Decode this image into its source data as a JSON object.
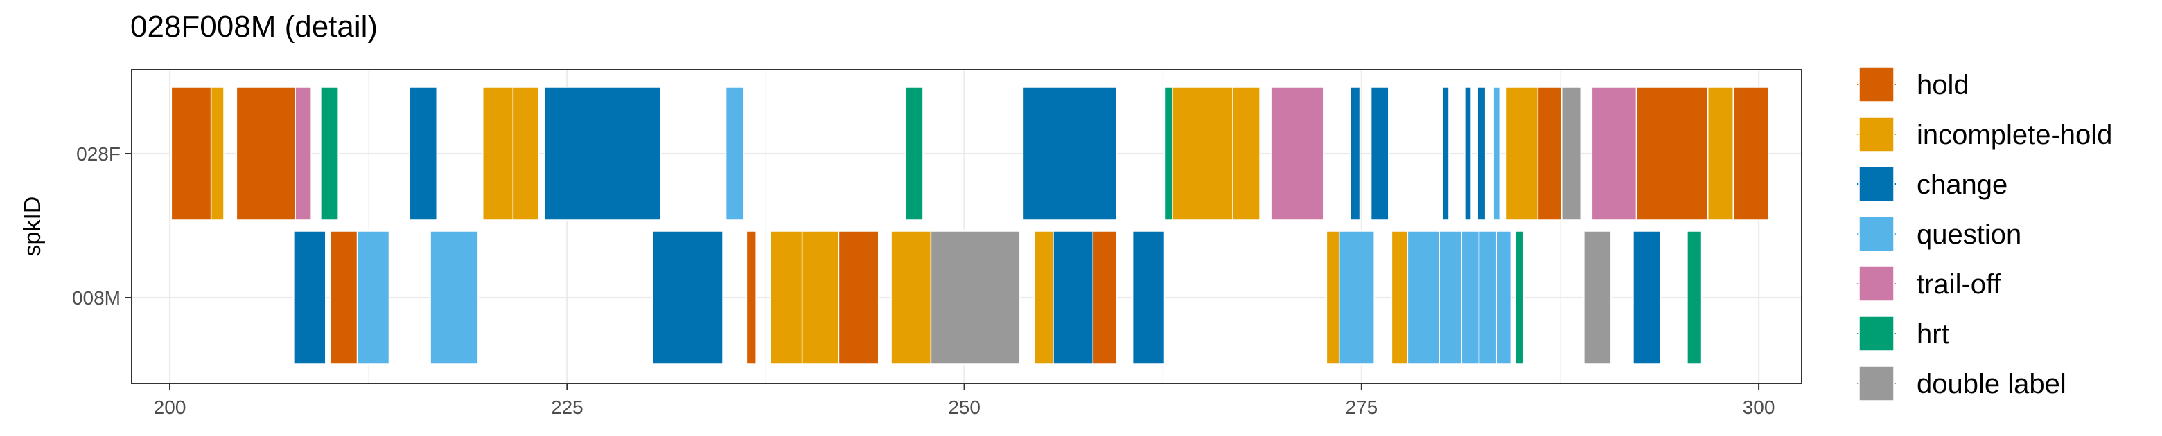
{
  "chart_data": {
    "type": "bar",
    "title": "028F008M (detail)",
    "ylabel": "spkID",
    "xlabel": "",
    "xlim": [
      197.6,
      302.7
    ],
    "x_ticks": [
      "200",
      "225",
      "250",
      "275",
      "300"
    ],
    "x_tick_values": [
      200,
      225,
      250,
      275,
      300
    ],
    "categories": [
      "028F",
      "008M"
    ],
    "grid": true,
    "legend_position": "right",
    "legend": [
      {
        "key": "hold",
        "label": "hold",
        "color": "#D55E00"
      },
      {
        "key": "incomplete-hold",
        "label": "incomplete-hold",
        "color": "#E69F00"
      },
      {
        "key": "change",
        "label": "change",
        "color": "#0072B2"
      },
      {
        "key": "question",
        "label": "question",
        "color": "#56B4E9"
      },
      {
        "key": "trail-off",
        "label": "trail-off",
        "color": "#CC79A7"
      },
      {
        "key": "hrt",
        "label": "hrt",
        "color": "#009E73"
      },
      {
        "key": "double label",
        "label": "double label",
        "color": "#999999"
      }
    ],
    "series": [
      {
        "speaker": "028F",
        "segments": [
          {
            "start": 200.1,
            "end": 202.6,
            "label": "hold"
          },
          {
            "start": 202.6,
            "end": 203.4,
            "label": "incomplete-hold"
          },
          {
            "start": 204.2,
            "end": 207.9,
            "label": "hold"
          },
          {
            "start": 207.9,
            "end": 208.9,
            "label": "trail-off"
          },
          {
            "start": 209.5,
            "end": 210.6,
            "label": "hrt"
          },
          {
            "start": 215.1,
            "end": 216.8,
            "label": "change"
          },
          {
            "start": 219.7,
            "end": 221.6,
            "label": "incomplete-hold"
          },
          {
            "start": 221.6,
            "end": 223.2,
            "label": "incomplete-hold"
          },
          {
            "start": 223.6,
            "end": 230.9,
            "label": "change"
          },
          {
            "start": 235.0,
            "end": 236.1,
            "label": "question"
          },
          {
            "start": 246.3,
            "end": 247.4,
            "label": "hrt"
          },
          {
            "start": 253.7,
            "end": 259.6,
            "label": "change"
          },
          {
            "start": 262.6,
            "end": 263.1,
            "label": "hrt"
          },
          {
            "start": 263.1,
            "end": 266.9,
            "label": "incomplete-hold"
          },
          {
            "start": 266.9,
            "end": 268.6,
            "label": "incomplete-hold"
          },
          {
            "start": 269.3,
            "end": 272.6,
            "label": "trail-off"
          },
          {
            "start": 274.3,
            "end": 274.9,
            "label": "change"
          },
          {
            "start": 275.6,
            "end": 276.7,
            "label": "change"
          },
          {
            "start": 280.1,
            "end": 280.5,
            "label": "change"
          },
          {
            "start": 281.5,
            "end": 281.9,
            "label": "change"
          },
          {
            "start": 282.3,
            "end": 282.8,
            "label": "change"
          },
          {
            "start": 283.3,
            "end": 283.7,
            "label": "question"
          },
          {
            "start": 284.1,
            "end": 286.1,
            "label": "incomplete-hold"
          },
          {
            "start": 286.1,
            "end": 287.6,
            "label": "hold"
          },
          {
            "start": 287.6,
            "end": 288.8,
            "label": "double label"
          },
          {
            "start": 289.5,
            "end": 292.3,
            "label": "trail-off"
          },
          {
            "start": 292.3,
            "end": 296.8,
            "label": "hold"
          },
          {
            "start": 296.8,
            "end": 298.4,
            "label": "incomplete-hold"
          },
          {
            "start": 298.4,
            "end": 300.6,
            "label": "hold"
          }
        ]
      },
      {
        "speaker": "008M",
        "segments": [
          {
            "start": 207.8,
            "end": 209.8,
            "label": "change"
          },
          {
            "start": 210.1,
            "end": 211.8,
            "label": "hold"
          },
          {
            "start": 211.8,
            "end": 213.8,
            "label": "question"
          },
          {
            "start": 216.4,
            "end": 219.4,
            "label": "question"
          },
          {
            "start": 230.4,
            "end": 234.8,
            "label": "change"
          },
          {
            "start": 236.3,
            "end": 236.9,
            "label": "hold"
          },
          {
            "start": 237.8,
            "end": 239.8,
            "label": "incomplete-hold"
          },
          {
            "start": 239.8,
            "end": 242.1,
            "label": "incomplete-hold"
          },
          {
            "start": 242.1,
            "end": 244.6,
            "label": "hold"
          },
          {
            "start": 245.4,
            "end": 247.9,
            "label": "incomplete-hold"
          },
          {
            "start": 247.9,
            "end": 253.5,
            "label": "double label"
          },
          {
            "start": 254.4,
            "end": 255.6,
            "label": "incomplete-hold"
          },
          {
            "start": 255.6,
            "end": 258.1,
            "label": "change"
          },
          {
            "start": 258.1,
            "end": 259.6,
            "label": "hold"
          },
          {
            "start": 260.6,
            "end": 262.6,
            "label": "change"
          },
          {
            "start": 272.8,
            "end": 273.6,
            "label": "incomplete-hold"
          },
          {
            "start": 273.6,
            "end": 275.8,
            "label": "question"
          },
          {
            "start": 276.9,
            "end": 277.9,
            "label": "incomplete-hold"
          },
          {
            "start": 277.9,
            "end": 279.9,
            "label": "question"
          },
          {
            "start": 279.9,
            "end": 281.3,
            "label": "question"
          },
          {
            "start": 281.3,
            "end": 282.4,
            "label": "question"
          },
          {
            "start": 282.4,
            "end": 283.5,
            "label": "question"
          },
          {
            "start": 283.5,
            "end": 284.4,
            "label": "question"
          },
          {
            "start": 284.7,
            "end": 285.2,
            "label": "hrt"
          },
          {
            "start": 289.0,
            "end": 290.7,
            "label": "double label"
          },
          {
            "start": 292.1,
            "end": 293.8,
            "label": "change"
          },
          {
            "start": 295.5,
            "end": 296.4,
            "label": "hrt"
          }
        ]
      }
    ]
  }
}
